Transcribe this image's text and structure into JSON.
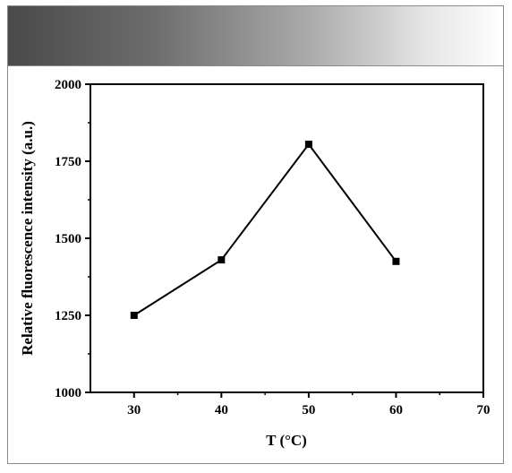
{
  "chart_data": {
    "type": "line",
    "x": [
      30,
      40,
      50,
      60
    ],
    "y": [
      1250,
      1430,
      1805,
      1425
    ],
    "xlabel": "T (°C)",
    "ylabel": "Relative fluorescence intensity (a.u.)",
    "xlim": [
      25,
      70
    ],
    "ylim": [
      1000,
      2000
    ],
    "xticks": [
      30,
      40,
      50,
      60,
      70
    ],
    "yticks": [
      1000,
      1250,
      1500,
      1750,
      2000
    ],
    "xtick_labels": [
      "30",
      "40",
      "50",
      "60",
      "70"
    ],
    "ytick_labels": [
      "1000",
      "1250",
      "1500",
      "1750",
      "2000"
    ],
    "marker": "square",
    "line_color": "#000000",
    "grid": false
  }
}
